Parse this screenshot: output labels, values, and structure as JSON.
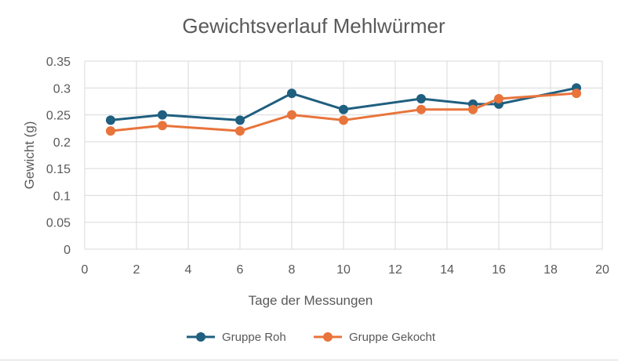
{
  "chart_data": {
    "type": "scatter",
    "mode": "lines+markers",
    "title": "Gewichtsverlauf Mehlwürmer",
    "xlabel": "Tage der Messungen",
    "ylabel": "Gewicht (g)",
    "xlim": [
      0,
      20
    ],
    "ylim": [
      0,
      0.35
    ],
    "xticks": [
      0,
      2,
      4,
      6,
      8,
      10,
      12,
      14,
      16,
      18,
      20
    ],
    "yticks": [
      0,
      0.05,
      0.1,
      0.15,
      0.2,
      0.25,
      0.3,
      0.35
    ],
    "xtick_labels": [
      "0",
      "2",
      "4",
      "6",
      "8",
      "10",
      "12",
      "14",
      "16",
      "18",
      "20"
    ],
    "ytick_labels": [
      "0",
      "0.05",
      "0.1",
      "0.15",
      "0.2",
      "0.25",
      "0.3",
      "0.35"
    ],
    "grid": true,
    "legend_position": "bottom",
    "series": [
      {
        "name": "Gruppe Roh",
        "color": "#1f5f7f",
        "x": [
          1,
          3,
          6,
          8,
          10,
          13,
          15,
          16,
          19
        ],
        "y": [
          0.24,
          0.25,
          0.24,
          0.29,
          0.26,
          0.28,
          0.27,
          0.27,
          0.3
        ]
      },
      {
        "name": "Gruppe Gekocht",
        "color": "#e8743b",
        "x": [
          1,
          3,
          6,
          8,
          10,
          13,
          15,
          16,
          19
        ],
        "y": [
          0.22,
          0.23,
          0.22,
          0.25,
          0.24,
          0.26,
          0.26,
          0.28,
          0.29
        ]
      }
    ]
  }
}
